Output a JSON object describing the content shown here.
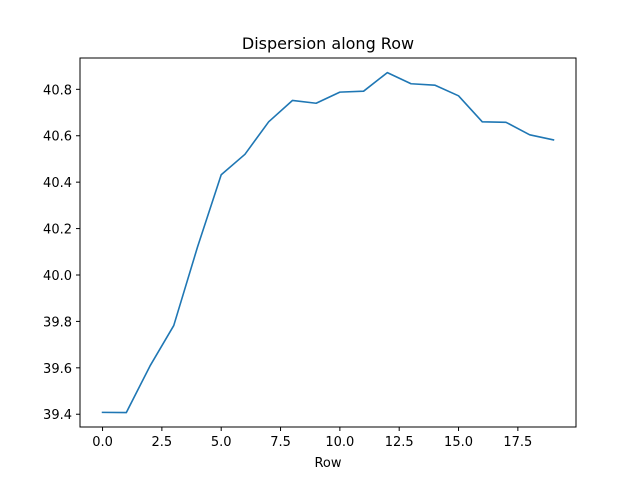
{
  "chart_data": {
    "type": "line",
    "title": "Dispersion along Row",
    "xlabel": "Row",
    "ylabel": "",
    "xlim": [
      -0.95,
      19.95
    ],
    "ylim": [
      39.345,
      40.935
    ],
    "xticks": [
      0.0,
      2.5,
      5.0,
      7.5,
      10.0,
      12.5,
      15.0,
      17.5
    ],
    "xtick_labels": [
      "0.0",
      "2.5",
      "5.0",
      "7.5",
      "10.0",
      "12.5",
      "15.0",
      "17.5"
    ],
    "yticks": [
      39.4,
      39.6,
      39.8,
      40.0,
      40.2,
      40.4,
      40.6,
      40.8
    ],
    "ytick_labels": [
      "39.4",
      "39.6",
      "39.8",
      "40.0",
      "40.2",
      "40.4",
      "40.6",
      "40.8"
    ],
    "grid": false,
    "series": [
      {
        "color": "#1f77b4",
        "x": [
          0,
          1,
          2,
          3,
          4,
          5,
          6,
          7,
          8,
          9,
          10,
          11,
          12,
          13,
          14,
          15,
          16,
          17,
          18,
          19
        ],
        "y": [
          39.408,
          39.407,
          39.608,
          39.782,
          40.12,
          40.432,
          40.52,
          40.66,
          40.752,
          40.74,
          40.788,
          40.792,
          40.872,
          40.824,
          40.818,
          40.772,
          40.66,
          40.658,
          40.604,
          40.582
        ]
      }
    ]
  }
}
